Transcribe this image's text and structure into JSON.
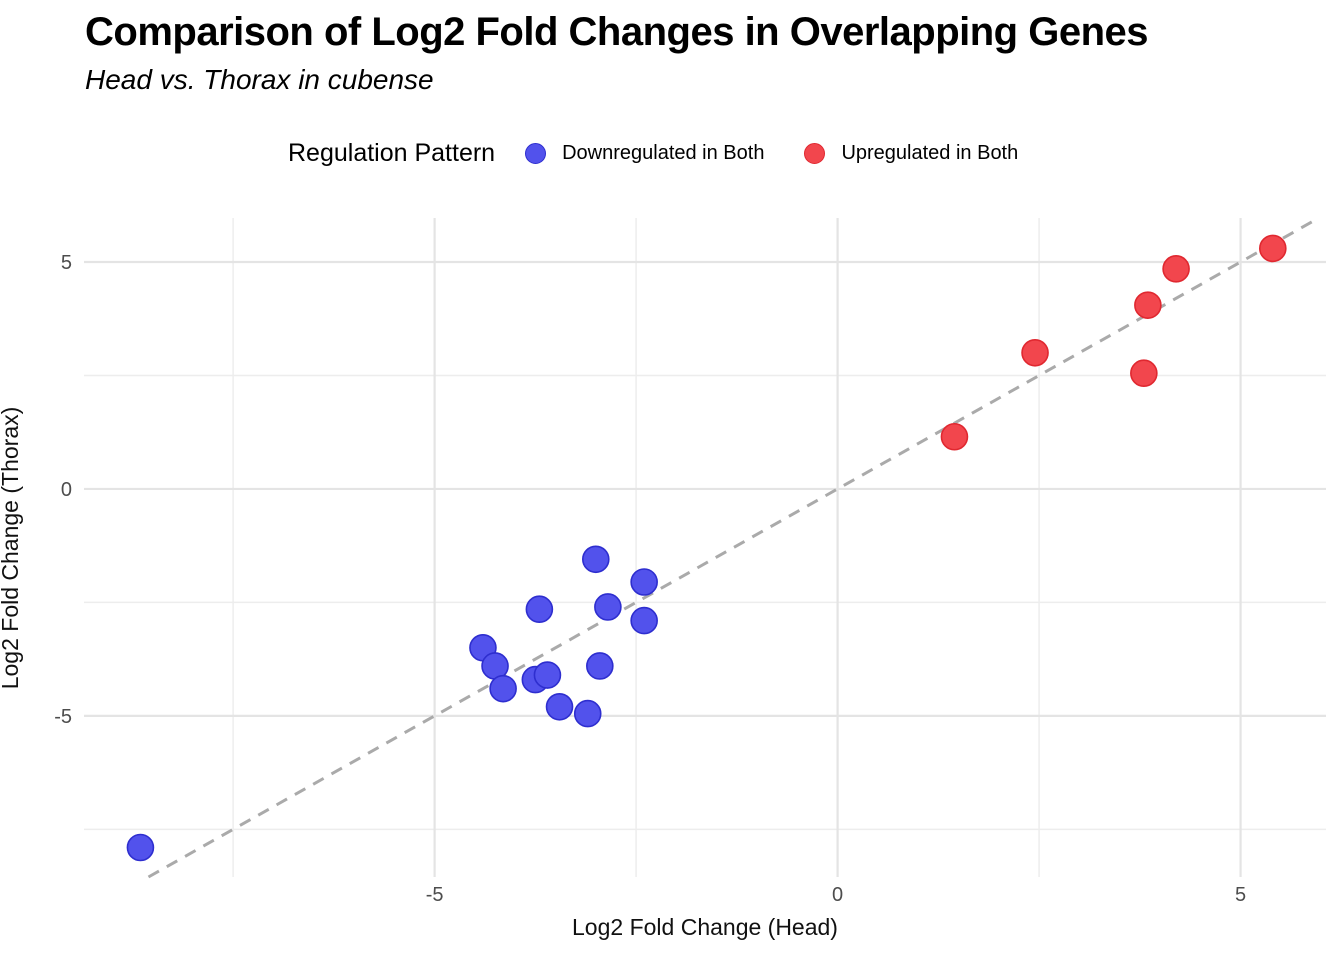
{
  "header": {
    "title": "Comparison of Log2 Fold Changes in Overlapping Genes",
    "subtitle": "Head vs. Thorax in cubense"
  },
  "legend": {
    "title": "Regulation Pattern",
    "items": [
      {
        "label": "Downregulated in Both",
        "fill": "#5252ec",
        "stroke": "#2e2ecf"
      },
      {
        "label": "Upregulated in Both",
        "fill": "#f2464d",
        "stroke": "#e02830"
      }
    ]
  },
  "axes": {
    "x": {
      "label": "Log2 Fold Change (Head)",
      "ticks": [
        "-5",
        "0",
        "5"
      ],
      "tick_values": [
        -5,
        0,
        5
      ]
    },
    "y": {
      "label": "Log2 Fold Change (Thorax)",
      "ticks": [
        "5",
        "0",
        "-5"
      ],
      "tick_values": [
        5,
        0,
        -5
      ]
    }
  },
  "colors": {
    "grid_major": "#e4e4e4",
    "grid_minor": "#ededed",
    "reference_line": "#aaaaaa",
    "tick_label": "#4d4d4d",
    "downregulated_fill": "#5252ec",
    "downregulated_stroke": "#2e2ecf",
    "upregulated_fill": "#f2464d",
    "upregulated_stroke": "#e02830"
  },
  "chart_data": {
    "type": "scatter",
    "title": "Comparison of Log2 Fold Changes in Overlapping Genes",
    "subtitle": "Head vs. Thorax in cubense",
    "xlabel": "Log2 Fold Change (Head)",
    "ylabel": "Log2 Fold Change (Thorax)",
    "xlim": [
      -9.35,
      6.06
    ],
    "ylim": [
      -8.55,
      5.97
    ],
    "legend_position": "top",
    "grid": {
      "x_major": [
        -5,
        0,
        5
      ],
      "x_minor": [
        -7.5,
        -2.5,
        2.5
      ],
      "y_major": [
        -5,
        0,
        5
      ],
      "y_minor": [
        -7.5,
        -2.5,
        2.5
      ]
    },
    "reference_line": {
      "type": "identity",
      "slope": 1,
      "intercept": 0,
      "style": "dashed",
      "color": "#aaaaaa"
    },
    "series": [
      {
        "name": "Downregulated in Both",
        "fill": "#5252ec",
        "stroke": "#2e2ecf",
        "points": [
          [
            -3.0,
            -1.55
          ],
          [
            -2.4,
            -2.05
          ],
          [
            -3.7,
            -2.65
          ],
          [
            -2.85,
            -2.6
          ],
          [
            -2.4,
            -2.9
          ],
          [
            -4.4,
            -3.5
          ],
          [
            -4.25,
            -3.9
          ],
          [
            -3.75,
            -4.2
          ],
          [
            -3.6,
            -4.1
          ],
          [
            -4.15,
            -4.4
          ],
          [
            -2.95,
            -3.9
          ],
          [
            -3.45,
            -4.8
          ],
          [
            -3.1,
            -4.95
          ],
          [
            -8.65,
            -7.9
          ]
        ]
      },
      {
        "name": "Upregulated in Both",
        "fill": "#f2464d",
        "stroke": "#e02830",
        "points": [
          [
            1.45,
            1.15
          ],
          [
            2.45,
            3.0
          ],
          [
            3.85,
            4.05
          ],
          [
            3.8,
            2.55
          ],
          [
            4.2,
            4.85
          ],
          [
            5.4,
            5.3
          ]
        ]
      }
    ]
  }
}
